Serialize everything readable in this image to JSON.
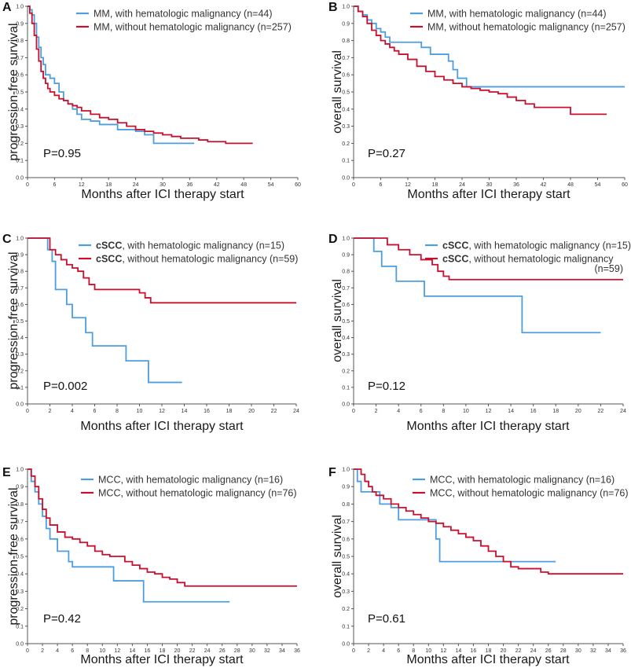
{
  "colors": {
    "with_hm": "#4d9ee0",
    "without_hm": "#c8102e"
  },
  "chart_data": [
    {
      "type": "line",
      "panel": "A",
      "xlabel": "Months after ICI therapy start",
      "ylabel": "progression-free survival",
      "xlim": [
        0,
        60
      ],
      "ylim": [
        0,
        1
      ],
      "x_ticks": [
        "0",
        "6",
        "12",
        "18",
        "24",
        "30",
        "36",
        "42",
        "48",
        "54",
        "60"
      ],
      "y_ticks": [
        "0.0",
        "0.1",
        "0.2",
        "0.3",
        "0.4",
        "0.5",
        "0.6",
        "0.7",
        "0.8",
        "0.9",
        "1.0"
      ],
      "pvalue": "P=0.95",
      "legend": [
        "MM, with hematologic malignancy (n=44)",
        "MM, without hematologic malignancy (n=257)"
      ],
      "series": [
        {
          "color": "with_hm",
          "x": [
            0,
            0.5,
            1,
            1.5,
            2,
            2.5,
            3,
            3.5,
            4,
            5,
            6,
            7,
            8,
            9,
            10,
            11,
            12,
            14,
            16,
            18,
            20,
            22,
            24,
            26,
            28,
            32,
            36,
            37
          ],
          "y": [
            1.0,
            0.98,
            0.95,
            0.9,
            0.82,
            0.76,
            0.7,
            0.66,
            0.6,
            0.58,
            0.55,
            0.5,
            0.45,
            0.43,
            0.4,
            0.37,
            0.34,
            0.33,
            0.31,
            0.31,
            0.28,
            0.28,
            0.27,
            0.25,
            0.2,
            0.2,
            0.2,
            0.2
          ]
        },
        {
          "color": "without_hm",
          "x": [
            0,
            0.5,
            1,
            1.5,
            2,
            2.5,
            3,
            3.5,
            4,
            4.5,
            5,
            6,
            7,
            8,
            9,
            10,
            11,
            12,
            14,
            16,
            18,
            20,
            22,
            24,
            26,
            28,
            30,
            32,
            34,
            36,
            38,
            40,
            44,
            48,
            50
          ],
          "y": [
            1.0,
            0.96,
            0.9,
            0.83,
            0.75,
            0.68,
            0.62,
            0.58,
            0.55,
            0.52,
            0.5,
            0.48,
            0.46,
            0.45,
            0.43,
            0.42,
            0.41,
            0.39,
            0.37,
            0.35,
            0.34,
            0.32,
            0.3,
            0.28,
            0.27,
            0.26,
            0.25,
            0.24,
            0.23,
            0.23,
            0.22,
            0.21,
            0.2,
            0.2,
            0.2
          ]
        }
      ]
    },
    {
      "type": "line",
      "panel": "B",
      "xlabel": "Months after ICI therapy start",
      "ylabel": "overall survival",
      "xlim": [
        0,
        60
      ],
      "ylim": [
        0,
        1
      ],
      "x_ticks": [
        "0",
        "6",
        "12",
        "18",
        "24",
        "30",
        "36",
        "42",
        "48",
        "54",
        "60"
      ],
      "y_ticks": [
        "0.0",
        "0.1",
        "0.2",
        "0.3",
        "0.4",
        "0.5",
        "0.6",
        "0.7",
        "0.8",
        "0.9",
        "1.0"
      ],
      "pvalue": "P=0.27",
      "legend": [
        "MM, with hematologic malignancy (n=44)",
        "MM, without hematologic malignancy (n=257)"
      ],
      "series": [
        {
          "color": "with_hm",
          "x": [
            0,
            1,
            2,
            3,
            4,
            5,
            6,
            7,
            8,
            10,
            12,
            14,
            15,
            17,
            19,
            21,
            22,
            23,
            24,
            25,
            26,
            30,
            40,
            50,
            60
          ],
          "y": [
            1.0,
            0.97,
            0.95,
            0.92,
            0.9,
            0.87,
            0.85,
            0.82,
            0.79,
            0.79,
            0.79,
            0.79,
            0.76,
            0.72,
            0.72,
            0.68,
            0.63,
            0.58,
            0.58,
            0.53,
            0.53,
            0.53,
            0.53,
            0.53,
            0.53
          ]
        },
        {
          "color": "without_hm",
          "x": [
            0,
            1,
            2,
            3,
            4,
            5,
            6,
            7,
            8,
            9,
            10,
            12,
            14,
            16,
            18,
            20,
            22,
            24,
            26,
            28,
            30,
            32,
            34,
            36,
            38,
            40,
            42,
            44,
            46,
            48,
            50,
            52,
            54,
            56
          ],
          "y": [
            1.0,
            0.97,
            0.94,
            0.9,
            0.86,
            0.83,
            0.8,
            0.78,
            0.76,
            0.74,
            0.72,
            0.69,
            0.65,
            0.62,
            0.59,
            0.57,
            0.55,
            0.53,
            0.52,
            0.51,
            0.5,
            0.49,
            0.47,
            0.45,
            0.43,
            0.41,
            0.41,
            0.41,
            0.41,
            0.37,
            0.37,
            0.37,
            0.37,
            0.37
          ]
        }
      ]
    },
    {
      "type": "line",
      "panel": "C",
      "xlabel": "Months after ICI therapy start",
      "ylabel": "progression-free survival",
      "xlim": [
        0,
        24
      ],
      "ylim": [
        0,
        1
      ],
      "x_ticks": [
        "0",
        "2",
        "4",
        "6",
        "8",
        "10",
        "12",
        "14",
        "16",
        "18",
        "20",
        "22",
        "24"
      ],
      "y_ticks": [
        "0.0",
        "0.1",
        "0.2",
        "0.3",
        "0.4",
        "0.5",
        "0.6",
        "0.7",
        "0.8",
        "0.9",
        "1.0"
      ],
      "pvalue": "P=0.002",
      "legend_bold": [
        "cSCC",
        "cSCC"
      ],
      "legend": [
        ", with hematologic malignancy (n=15)",
        ", without hematologic malignancy (n=59)"
      ],
      "series": [
        {
          "color": "with_hm",
          "x": [
            0,
            1.5,
            1.8,
            2.2,
            2.5,
            3.5,
            4,
            5.2,
            5.8,
            7.3,
            8.8,
            9.8,
            10.8,
            12,
            13.8
          ],
          "y": [
            1.0,
            1.0,
            0.93,
            0.86,
            0.69,
            0.6,
            0.52,
            0.43,
            0.35,
            0.35,
            0.26,
            0.26,
            0.13,
            0.13,
            0.13
          ]
        },
        {
          "color": "without_hm",
          "x": [
            0,
            1.5,
            2,
            2.5,
            3,
            3.5,
            4,
            4.5,
            5,
            5.5,
            6,
            7,
            8,
            9,
            10,
            10.5,
            11,
            12,
            14,
            16,
            18,
            20,
            22,
            24
          ],
          "y": [
            1.0,
            1.0,
            0.93,
            0.9,
            0.87,
            0.84,
            0.82,
            0.8,
            0.76,
            0.72,
            0.69,
            0.69,
            0.69,
            0.69,
            0.67,
            0.64,
            0.61,
            0.61,
            0.61,
            0.61,
            0.61,
            0.61,
            0.61,
            0.61
          ]
        }
      ]
    },
    {
      "type": "line",
      "panel": "D",
      "xlabel": "Months after ICI therapy start",
      "ylabel": "overall survival",
      "xlim": [
        0,
        24
      ],
      "ylim": [
        0,
        1
      ],
      "x_ticks": [
        "0",
        "2",
        "4",
        "6",
        "8",
        "10",
        "12",
        "14",
        "16",
        "18",
        "20",
        "22",
        "24"
      ],
      "y_ticks": [
        "0.0",
        "0.1",
        "0.2",
        "0.3",
        "0.4",
        "0.5",
        "0.6",
        "0.7",
        "0.8",
        "0.9",
        "1.0"
      ],
      "pvalue": "P=0.12",
      "legend_bold": [
        "cSCC",
        "cSCC"
      ],
      "legend": [
        ", with hematologic malignancy (n=15)",
        ", without hematologic malignancy"
      ],
      "legend_extra": "(n=59)",
      "series": [
        {
          "color": "with_hm",
          "x": [
            0,
            1.8,
            2.5,
            3.8,
            5,
            6.3,
            8,
            10,
            12,
            14,
            15,
            16,
            18,
            20,
            22
          ],
          "y": [
            1.0,
            0.92,
            0.83,
            0.74,
            0.74,
            0.65,
            0.65,
            0.65,
            0.65,
            0.65,
            0.43,
            0.43,
            0.43,
            0.43,
            0.43
          ]
        },
        {
          "color": "without_hm",
          "x": [
            0,
            2.5,
            3,
            4,
            5,
            6,
            7,
            7.5,
            8,
            8.5,
            10,
            12,
            14,
            16,
            18,
            20,
            22,
            24
          ],
          "y": [
            1.0,
            1.0,
            0.96,
            0.93,
            0.9,
            0.87,
            0.84,
            0.8,
            0.77,
            0.75,
            0.75,
            0.75,
            0.75,
            0.75,
            0.75,
            0.75,
            0.75,
            0.75
          ]
        }
      ]
    },
    {
      "type": "line",
      "panel": "E",
      "xlabel": "Months after ICI therapy start",
      "ylabel": "progression-free survival",
      "xlim": [
        0,
        36
      ],
      "ylim": [
        0,
        1
      ],
      "x_ticks": [
        "0",
        "2",
        "4",
        "6",
        "8",
        "10",
        "12",
        "14",
        "16",
        "18",
        "20",
        "22",
        "24",
        "26",
        "28",
        "30",
        "32",
        "34",
        "36"
      ],
      "y_ticks": [
        "0.0",
        "0.1",
        "0.2",
        "0.3",
        "0.4",
        "0.5",
        "0.6",
        "0.7",
        "0.8",
        "0.9",
        "1.0"
      ],
      "pvalue": "P=0.42",
      "legend": [
        "MCC, with hematologic malignancy (n=16)",
        "MCC, without hematologic malignancy (n=76)"
      ],
      "series": [
        {
          "color": "with_hm",
          "x": [
            0,
            0.5,
            1,
            1.5,
            2,
            2.5,
            3,
            4,
            5,
            5.5,
            6,
            8,
            10,
            11.5,
            12,
            14,
            15.5,
            16,
            18,
            20,
            22,
            24,
            26,
            27
          ],
          "y": [
            1.0,
            0.93,
            0.87,
            0.8,
            0.73,
            0.66,
            0.6,
            0.53,
            0.53,
            0.47,
            0.44,
            0.44,
            0.44,
            0.36,
            0.36,
            0.36,
            0.24,
            0.24,
            0.24,
            0.24,
            0.24,
            0.24,
            0.24,
            0.24
          ]
        },
        {
          "color": "without_hm",
          "x": [
            0,
            0.5,
            1,
            1.5,
            2,
            2.5,
            3,
            4,
            5,
            6,
            7,
            8,
            9,
            10,
            11,
            12,
            13,
            14,
            15,
            16,
            17,
            18,
            19,
            20,
            21,
            22,
            24,
            26,
            28,
            30,
            32,
            34,
            36
          ],
          "y": [
            1.0,
            0.96,
            0.9,
            0.83,
            0.77,
            0.72,
            0.68,
            0.64,
            0.61,
            0.6,
            0.58,
            0.56,
            0.53,
            0.51,
            0.5,
            0.5,
            0.47,
            0.45,
            0.43,
            0.41,
            0.4,
            0.38,
            0.37,
            0.35,
            0.33,
            0.33,
            0.33,
            0.33,
            0.33,
            0.33,
            0.33,
            0.33,
            0.33
          ]
        }
      ]
    },
    {
      "type": "line",
      "panel": "F",
      "xlabel": "Months after ICI therapy start",
      "ylabel": "overall survival",
      "xlim": [
        0,
        36
      ],
      "ylim": [
        0,
        1
      ],
      "x_ticks": [
        "0",
        "2",
        "4",
        "6",
        "8",
        "10",
        "12",
        "14",
        "16",
        "18",
        "20",
        "22",
        "24",
        "26",
        "28",
        "30",
        "32",
        "34",
        "36"
      ],
      "y_ticks": [
        "0.0",
        "0.1",
        "0.2",
        "0.3",
        "0.4",
        "0.5",
        "0.6",
        "0.7",
        "0.8",
        "0.9",
        "1.0"
      ],
      "pvalue": "P=0.61",
      "legend": [
        "MCC, with hematologic malignancy (n=16)",
        "MCC, without hematologic malignancy (n=76)"
      ],
      "series": [
        {
          "color": "with_hm",
          "x": [
            0,
            0.5,
            1,
            2,
            3,
            3.5,
            4,
            5,
            6,
            8,
            10,
            11,
            11.5,
            12,
            14,
            16,
            18,
            20,
            22,
            24,
            26,
            27
          ],
          "y": [
            1.0,
            0.93,
            0.87,
            0.87,
            0.87,
            0.8,
            0.8,
            0.78,
            0.71,
            0.71,
            0.71,
            0.6,
            0.47,
            0.47,
            0.47,
            0.47,
            0.47,
            0.47,
            0.47,
            0.47,
            0.47,
            0.47
          ]
        },
        {
          "color": "without_hm",
          "x": [
            0,
            0.5,
            1,
            1.5,
            2,
            2.5,
            3,
            4,
            5,
            6,
            7,
            8,
            9,
            10,
            11,
            12,
            13,
            14,
            15,
            16,
            17,
            18,
            19,
            20,
            21,
            22,
            24,
            25,
            26,
            28,
            30,
            32,
            34,
            36
          ],
          "y": [
            1.0,
            1.0,
            0.97,
            0.93,
            0.9,
            0.87,
            0.85,
            0.83,
            0.8,
            0.78,
            0.76,
            0.74,
            0.72,
            0.7,
            0.69,
            0.67,
            0.65,
            0.63,
            0.61,
            0.59,
            0.56,
            0.53,
            0.5,
            0.47,
            0.44,
            0.43,
            0.43,
            0.41,
            0.4,
            0.4,
            0.4,
            0.4,
            0.4,
            0.4
          ]
        }
      ]
    }
  ]
}
